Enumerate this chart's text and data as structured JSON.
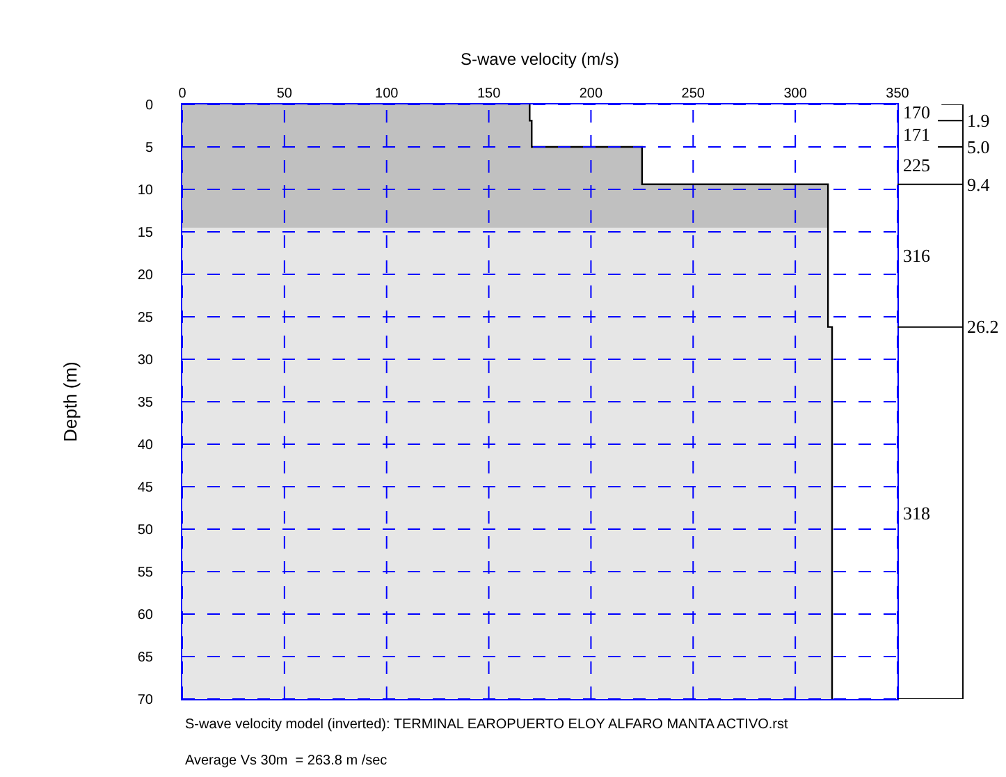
{
  "chart_data": {
    "type": "area",
    "xlabel": "S-wave velocity (m/s)",
    "ylabel": "Depth (m)",
    "xlim": [
      0,
      350
    ],
    "xticks": [
      0,
      50,
      100,
      150,
      200,
      250,
      300,
      350
    ],
    "ylim": [
      70,
      0
    ],
    "yticks": [
      0,
      5,
      10,
      15,
      20,
      25,
      30,
      35,
      40,
      45,
      50,
      55,
      60,
      65,
      70
    ],
    "grid": true,
    "series": [
      {
        "color": "#c0c0c0",
        "x": [
          0,
          170,
          170,
          171,
          171,
          225,
          225,
          316,
          316,
          0
        ],
        "values": [
          0,
          0,
          1.9,
          1.9,
          5.0,
          5.0,
          9.4,
          9.4,
          14.5,
          14.5
        ]
      },
      {
        "color": "#e6e6e6",
        "x": [
          0,
          316,
          316,
          318,
          318,
          0
        ],
        "values": [
          14.5,
          14.5,
          26.2,
          26.2,
          70,
          70
        ]
      },
      {
        "type": "line",
        "color": "#000000",
        "x": [
          170,
          170,
          171,
          171,
          225,
          225,
          316,
          316,
          318,
          318
        ],
        "values": [
          0,
          1.9,
          1.9,
          5.0,
          5.0,
          9.4,
          9.4,
          26.2,
          26.2,
          70
        ]
      }
    ],
    "annotations": [
      "170",
      "171",
      "225",
      "316",
      "318",
      "1.9",
      "5.0",
      "9.4",
      "26.2",
      "S-wave velocity model (inverted): TERMINAL EAROPUERTO ELOY ALFARO MANTA ACTIVO.rst",
      "Average Vs 30m  = 263.8 m /sec"
    ]
  }
}
